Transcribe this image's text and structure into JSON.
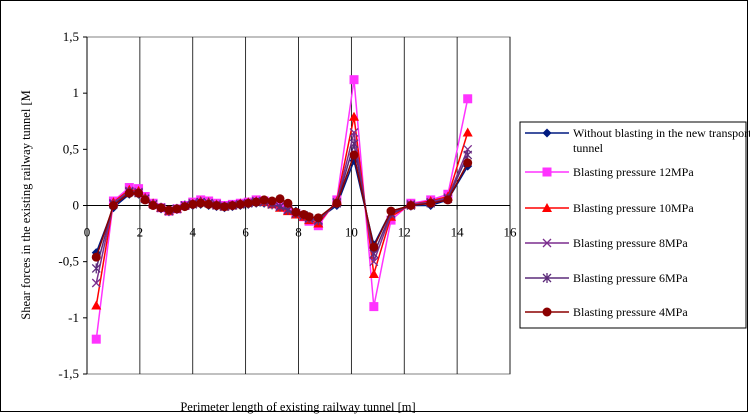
{
  "chart_data": {
    "type": "line",
    "title": "",
    "xlabel": "Perimeter length of existing railway tunnel [m]",
    "ylabel": "Shear forces in the existing railway tunnel [M",
    "xlim": [
      0,
      16
    ],
    "ylim": [
      -1.5,
      1.5
    ],
    "x_ticks": [
      0,
      2,
      4,
      6,
      8,
      10,
      12,
      14,
      16
    ],
    "x_tick_labels": [
      "0",
      "2",
      "4",
      "6",
      "8",
      "10",
      "12",
      "14",
      "16"
    ],
    "y_ticks": [
      1.5,
      1,
      0.5,
      0,
      -0.5,
      -1,
      -1.5
    ],
    "y_tick_labels": [
      "1,5",
      "1",
      "0,5",
      "0",
      "-0,5",
      "-1",
      "-1,5"
    ],
    "grid": "vertical",
    "legend_position": "right",
    "x": [
      0.35,
      1.0,
      1.6,
      1.95,
      2.2,
      2.5,
      2.8,
      3.1,
      3.4,
      3.7,
      4.0,
      4.3,
      4.6,
      4.9,
      5.2,
      5.5,
      5.8,
      6.1,
      6.4,
      6.7,
      7.0,
      7.3,
      7.6,
      7.9,
      8.2,
      8.4,
      8.75,
      9.45,
      10.1,
      10.85,
      11.5,
      12.25,
      13.0,
      13.65,
      14.4
    ],
    "series": [
      {
        "name": "Without blasting in the new transported tunnel",
        "color": "#001a80",
        "marker": "diamond",
        "values": [
          -0.42,
          -0.02,
          0.1,
          0.1,
          0.05,
          0.0,
          -0.03,
          -0.05,
          -0.03,
          -0.01,
          0.0,
          0.01,
          0.0,
          -0.01,
          -0.02,
          -0.01,
          0.0,
          0.01,
          0.02,
          0.02,
          0.01,
          0.0,
          -0.02,
          -0.05,
          -0.08,
          -0.1,
          -0.12,
          0.0,
          0.4,
          -0.35,
          -0.05,
          0.0,
          0.0,
          0.05,
          0.35
        ]
      },
      {
        "name": "Blasting pressure 12MPa",
        "color": "#ff33ff",
        "marker": "square",
        "values": [
          -1.19,
          0.04,
          0.16,
          0.15,
          0.08,
          0.02,
          -0.02,
          -0.05,
          -0.03,
          0.0,
          0.03,
          0.05,
          0.04,
          0.02,
          0.0,
          0.01,
          0.02,
          0.03,
          0.05,
          0.04,
          0.02,
          -0.01,
          -0.04,
          -0.07,
          -0.1,
          -0.14,
          -0.18,
          0.05,
          1.12,
          -0.9,
          -0.13,
          0.02,
          0.05,
          0.1,
          0.95
        ]
      },
      {
        "name": "Blasting pressure 10MPa",
        "color": "#ff0000",
        "marker": "triangle",
        "values": [
          -0.89,
          0.03,
          0.14,
          0.13,
          0.07,
          0.02,
          -0.02,
          -0.05,
          -0.03,
          0.0,
          0.02,
          0.04,
          0.03,
          0.01,
          -0.01,
          0.0,
          0.02,
          0.03,
          0.04,
          0.03,
          0.01,
          -0.02,
          -0.05,
          -0.08,
          -0.1,
          -0.13,
          -0.16,
          0.04,
          0.79,
          -0.61,
          -0.1,
          0.01,
          0.04,
          0.08,
          0.65
        ]
      },
      {
        "name": "Blasting pressure 8MPa",
        "color": "#7b2d8e",
        "marker": "x",
        "values": [
          -0.69,
          0.02,
          0.13,
          0.12,
          0.06,
          0.01,
          -0.02,
          -0.05,
          -0.03,
          0.0,
          0.02,
          0.03,
          0.02,
          0.01,
          -0.01,
          0.0,
          0.01,
          0.02,
          0.04,
          0.03,
          0.01,
          -0.01,
          -0.04,
          -0.07,
          -0.09,
          -0.12,
          -0.14,
          0.03,
          0.65,
          -0.5,
          -0.08,
          0.01,
          0.03,
          0.07,
          0.5
        ]
      },
      {
        "name": "Blasting pressure 6MPa",
        "color": "#5c2b7a",
        "marker": "asterisk",
        "values": [
          -0.56,
          0.01,
          0.12,
          0.11,
          0.06,
          0.01,
          -0.02,
          -0.05,
          -0.03,
          0.0,
          0.01,
          0.03,
          0.02,
          0.0,
          -0.01,
          0.0,
          0.01,
          0.02,
          0.03,
          0.03,
          0.01,
          -0.01,
          -0.04,
          -0.07,
          -0.09,
          -0.11,
          -0.13,
          0.02,
          0.55,
          -0.43,
          -0.07,
          0.0,
          0.02,
          0.06,
          0.45
        ]
      },
      {
        "name": "Blasting pressure 4MPa",
        "color": "#8b0000",
        "marker": "circle",
        "values": [
          -0.46,
          0.0,
          0.11,
          0.11,
          0.05,
          0.0,
          -0.02,
          -0.04,
          -0.03,
          -0.01,
          0.01,
          0.02,
          0.01,
          0.0,
          -0.01,
          0.0,
          0.01,
          0.02,
          0.03,
          0.05,
          0.04,
          0.06,
          0.02,
          -0.06,
          -0.08,
          -0.1,
          -0.11,
          0.02,
          0.45,
          -0.37,
          -0.05,
          0.0,
          0.02,
          0.05,
          0.38
        ]
      }
    ]
  }
}
